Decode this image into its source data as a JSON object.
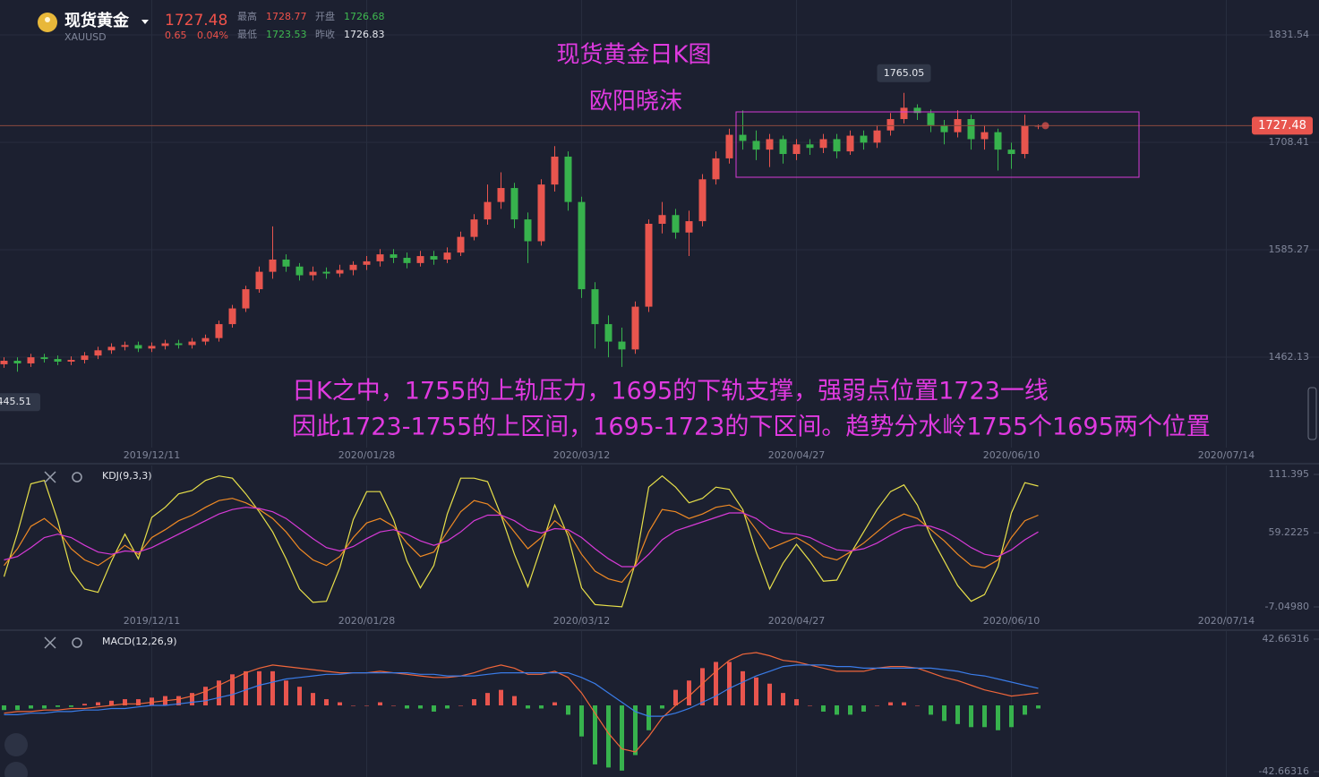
{
  "header": {
    "name": "现货黄金",
    "symbol": "XAUUSD",
    "price": 1727.48,
    "change": 0.65,
    "change_pct": "0.04%",
    "high_label": "最高",
    "high": 1728.77,
    "open_label": "开盘",
    "open": 1726.68,
    "low_label": "最低",
    "low": 1723.53,
    "prev_close_label": "昨收",
    "prev_close": 1726.83
  },
  "chart_data": [
    {
      "type": "candlestick",
      "title": "现货黄金日K图",
      "subtitle": "欧阳晓沫",
      "annotations": [
        "日K之中，1755的上轨压力，1695的下轨支撑，强弱点位置1723一线",
        "因此1723-1755的上区间，1695-1723的下区间。趋势分水岭1755个1695两个位置"
      ],
      "open": [
        1454,
        1458,
        1455,
        1462,
        1460,
        1457,
        1459,
        1464,
        1470,
        1474,
        1476,
        1472,
        1475,
        1478,
        1476,
        1480,
        1484,
        1500,
        1518,
        1540,
        1560,
        1574,
        1566,
        1556,
        1560,
        1558,
        1562,
        1568,
        1572,
        1580,
        1576,
        1570,
        1578,
        1574,
        1582,
        1600,
        1620,
        1640,
        1656,
        1620,
        1595,
        1660,
        1692,
        1640,
        1540,
        1500,
        1480,
        1471,
        1520,
        1615,
        1625,
        1605,
        1618,
        1666,
        1690,
        1717,
        1710,
        1700,
        1712,
        1695,
        1706,
        1702,
        1712,
        1698,
        1716,
        1708,
        1722,
        1735,
        1748,
        1742,
        1728,
        1720,
        1735,
        1712,
        1720,
        1700,
        1695,
        1726.68
      ],
      "high": [
        1462,
        1462,
        1466,
        1466,
        1464,
        1463,
        1468,
        1474,
        1478,
        1480,
        1480,
        1479,
        1482,
        1482,
        1484,
        1488,
        1504,
        1522,
        1544,
        1566,
        1612,
        1580,
        1570,
        1566,
        1565,
        1568,
        1572,
        1578,
        1586,
        1586,
        1582,
        1584,
        1584,
        1588,
        1606,
        1626,
        1660,
        1674,
        1662,
        1628,
        1666,
        1704,
        1698,
        1646,
        1548,
        1510,
        1496,
        1526,
        1620,
        1640,
        1632,
        1630,
        1672,
        1698,
        1724,
        1745,
        1722,
        1718,
        1716,
        1712,
        1712,
        1718,
        1718,
        1722,
        1722,
        1728,
        1742,
        1765.05,
        1752,
        1746,
        1734,
        1745,
        1740,
        1728,
        1724,
        1708,
        1740,
        1728.77
      ],
      "low": [
        1450,
        1445.51,
        1451,
        1456,
        1453,
        1453,
        1455,
        1460,
        1466,
        1470,
        1468,
        1468,
        1471,
        1472,
        1472,
        1476,
        1480,
        1496,
        1514,
        1536,
        1552,
        1560,
        1550,
        1550,
        1552,
        1554,
        1556,
        1562,
        1566,
        1570,
        1564,
        1566,
        1568,
        1570,
        1578,
        1596,
        1614,
        1632,
        1610,
        1570,
        1590,
        1652,
        1630,
        1530,
        1472,
        1462,
        1451,
        1466,
        1514,
        1604,
        1598,
        1578,
        1612,
        1660,
        1684,
        1700,
        1688,
        1680,
        1684,
        1688,
        1694,
        1696,
        1690,
        1694,
        1700,
        1702,
        1716,
        1730,
        1734,
        1720,
        1706,
        1714,
        1700,
        1700,
        1676,
        1678,
        1690,
        1723.53
      ],
      "close": [
        1458,
        1455,
        1462,
        1460,
        1457,
        1459,
        1464,
        1470,
        1474,
        1476,
        1472,
        1475,
        1478,
        1476,
        1480,
        1484,
        1500,
        1518,
        1540,
        1560,
        1574,
        1566,
        1556,
        1560,
        1558,
        1562,
        1568,
        1572,
        1580,
        1576,
        1570,
        1578,
        1574,
        1582,
        1600,
        1620,
        1640,
        1656,
        1620,
        1595,
        1660,
        1692,
        1640,
        1540,
        1500,
        1480,
        1471,
        1520,
        1615,
        1625,
        1605,
        1618,
        1666,
        1690,
        1717,
        1710,
        1700,
        1712,
        1695,
        1706,
        1702,
        1712,
        1698,
        1716,
        1708,
        1722,
        1735,
        1748,
        1742,
        1728,
        1720,
        1735,
        1712,
        1720,
        1700,
        1695,
        1726.83,
        1727.48
      ],
      "up_color": "#e8554e",
      "down_color": "#37b24d",
      "xlim": [
        -0.3,
        97.9
      ],
      "xticks": [
        {
          "value": 11,
          "label": "2019/12/11"
        },
        {
          "value": 27,
          "label": "2020/01/28"
        },
        {
          "value": 43,
          "label": "2020/03/12"
        },
        {
          "value": 59,
          "label": "2020/04/27"
        },
        {
          "value": 75,
          "label": "2020/06/10"
        },
        {
          "value": 91,
          "label": "2020/07/14"
        }
      ],
      "ylim": [
        1358.5,
        1871.5
      ],
      "yticks": [
        1831.54,
        1708.41,
        1585.27,
        1462.13
      ],
      "grid": true
    },
    {
      "type": "line",
      "title": "KDJ(9,3,3)",
      "series": [
        {
          "color": "#e8e04a",
          "values": [
            20,
            59,
            103,
            106,
            70,
            25,
            9,
            6,
            34,
            58,
            36,
            73,
            82,
            94,
            97,
            106,
            110,
            108,
            94,
            78,
            60,
            36,
            9,
            -3,
            -2,
            28,
            71,
            96,
            96,
            71,
            34,
            10,
            30,
            76,
            108,
            108,
            105,
            75,
            40,
            11,
            47,
            84,
            56,
            10,
            -5,
            -6,
            -7,
            32,
            100,
            110,
            100,
            86,
            90,
            100,
            98,
            80,
            42,
            9,
            32,
            49,
            34,
            16,
            17,
            40,
            60,
            80,
            96,
            102,
            84,
            56,
            34,
            12,
            -2,
            4,
            29,
            77,
            104,
            101
          ]
        },
        {
          "color": "#f08a24",
          "values": [
            30,
            45,
            65,
            72,
            62,
            45,
            35,
            30,
            38,
            48,
            40,
            55,
            62,
            70,
            75,
            82,
            88,
            90,
            86,
            80,
            72,
            60,
            45,
            35,
            30,
            38,
            55,
            68,
            72,
            65,
            50,
            38,
            42,
            60,
            78,
            88,
            85,
            75,
            60,
            45,
            55,
            70,
            60,
            40,
            25,
            18,
            15,
            30,
            60,
            80,
            78,
            72,
            76,
            82,
            84,
            78,
            62,
            45,
            50,
            55,
            48,
            38,
            35,
            42,
            50,
            60,
            70,
            76,
            72,
            62,
            52,
            40,
            30,
            28,
            35,
            55,
            70,
            75
          ]
        },
        {
          "color": "#d63ad6",
          "values": [
            35,
            38,
            46,
            55,
            58,
            55,
            48,
            42,
            40,
            43,
            42,
            46,
            52,
            58,
            64,
            70,
            76,
            80,
            82,
            81,
            78,
            72,
            63,
            54,
            46,
            43,
            47,
            54,
            60,
            62,
            58,
            52,
            48,
            52,
            60,
            70,
            75,
            75,
            70,
            62,
            59,
            63,
            62,
            55,
            45,
            36,
            29,
            29,
            40,
            53,
            61,
            65,
            69,
            73,
            77,
            77,
            72,
            63,
            59,
            58,
            55,
            49,
            44,
            43,
            45,
            50,
            57,
            63,
            66,
            65,
            61,
            54,
            46,
            40,
            38,
            44,
            53,
            60
          ]
        }
      ],
      "ylim": [
        -24.65,
        119.4
      ],
      "yticks": [
        111.395,
        59.2225,
        {
          "value": -7.0498,
          "label": "-7.04980"
        }
      ],
      "grid": false
    },
    {
      "type": "combo",
      "title": "MACD(12,26,9)",
      "histogram": {
        "up_color": "#e8554e",
        "down_color": "#37b24d",
        "values": [
          -3,
          -3,
          -2,
          -2,
          -1,
          -1,
          1,
          2,
          3,
          4,
          4,
          5,
          6,
          6,
          8,
          12,
          16,
          20,
          22,
          22,
          22,
          16,
          12,
          8,
          4,
          2,
          0,
          0,
          2,
          0,
          -2,
          -2,
          -4,
          -2,
          0,
          4,
          8,
          10,
          6,
          -2,
          -2,
          2,
          -6,
          -20,
          -38,
          -40,
          -42,
          -32,
          -16,
          -2,
          10,
          16,
          24,
          28,
          28,
          22,
          18,
          14,
          8,
          4,
          0,
          -4,
          -6,
          -6,
          -4,
          0,
          2,
          2,
          0,
          -6,
          -10,
          -12,
          -14,
          -14,
          -16,
          -14,
          -6,
          -2
        ]
      },
      "series": [
        {
          "color": "#f0663a",
          "values": [
            -5,
            -4,
            -4,
            -3,
            -3,
            -2,
            -2,
            -1,
            0,
            1,
            1,
            2,
            3,
            4,
            6,
            9,
            13,
            17,
            21,
            24,
            26,
            25,
            24,
            23,
            22,
            21,
            21,
            21,
            22,
            21,
            20,
            19,
            18,
            18,
            19,
            21,
            24,
            26,
            24,
            20,
            20,
            22,
            18,
            8,
            -5,
            -18,
            -28,
            -30,
            -20,
            -8,
            0,
            6,
            14,
            22,
            29,
            33,
            34,
            32,
            29,
            28,
            26,
            24,
            22,
            22,
            22,
            24,
            25,
            25,
            24,
            21,
            18,
            16,
            13,
            10,
            8,
            6,
            7,
            8
          ]
        },
        {
          "color": "#3a7ce8",
          "values": [
            -6,
            -6,
            -5,
            -5,
            -4,
            -4,
            -3,
            -3,
            -2,
            -2,
            -1,
            0,
            0,
            1,
            2,
            3,
            5,
            7,
            10,
            13,
            15,
            17,
            18,
            19,
            20,
            20,
            21,
            21,
            21,
            21,
            21,
            20,
            20,
            19,
            19,
            19,
            20,
            21,
            21,
            21,
            21,
            21,
            21,
            18,
            14,
            8,
            2,
            -4,
            -7,
            -7,
            -5,
            -2,
            2,
            6,
            11,
            15,
            19,
            22,
            25,
            26,
            26,
            26,
            25,
            25,
            24,
            24,
            24,
            24,
            24,
            24,
            23,
            22,
            20,
            19,
            17,
            15,
            13,
            11
          ]
        }
      ],
      "ylim": [
        -46.12,
        47.86
      ],
      "yticks": [
        42.66316,
        -42.66316
      ],
      "grid": false
    }
  ]
}
